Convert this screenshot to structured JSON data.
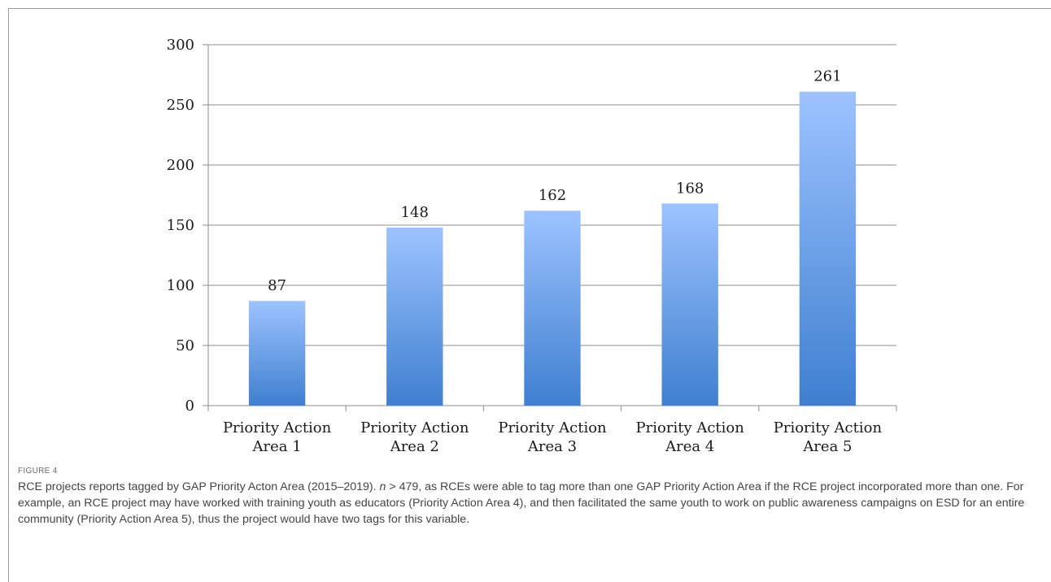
{
  "chart_data": {
    "type": "bar",
    "categories": [
      [
        "Priority Action",
        "Area 1"
      ],
      [
        "Priority Action",
        "Area 2"
      ],
      [
        "Priority Action",
        "Area 3"
      ],
      [
        "Priority Action",
        "Area 4"
      ],
      [
        "Priority Action",
        "Area 5"
      ]
    ],
    "values": [
      87,
      148,
      162,
      168,
      261
    ],
    "data_labels": [
      "87",
      "148",
      "162",
      "168",
      "261"
    ],
    "yticks": [
      "0",
      "50",
      "100",
      "150",
      "200",
      "250",
      "300"
    ],
    "ylim": [
      0,
      300
    ],
    "grid": true,
    "legend": "none",
    "colors": {
      "bar_top": "#9dc3ff",
      "bar_bottom": "#3f7fd0",
      "grid": "#8c8c8c",
      "axis": "#8c8c8c"
    }
  },
  "figure": {
    "label": "FIGURE 4",
    "caption_prefix": "RCE projects reports tagged by GAP Priority Acton Area (2015–2019). ",
    "caption_n": "n",
    "caption_rest": " > 479, as RCEs were able to tag more than one GAP Priority Action Area if the RCE project incorporated more than one. For example, an RCE project may have worked with training youth as educators (Priority Action Area 4), and then facilitated the same youth to work on public awareness campaigns on ESD for an entire community (Priority Action Area 5), thus the project would have two tags for this variable."
  }
}
